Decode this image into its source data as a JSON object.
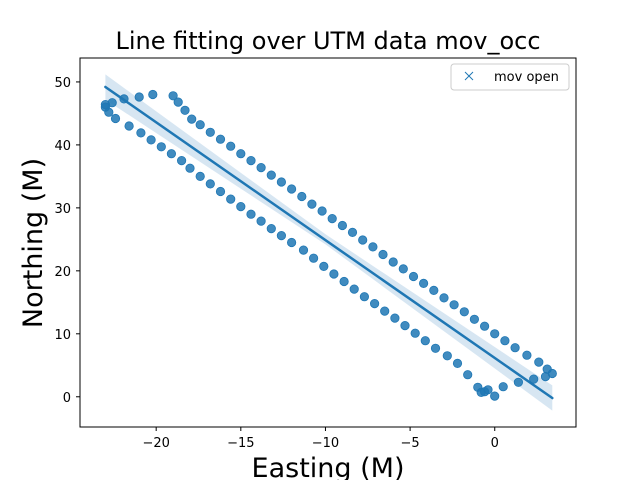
{
  "chart_data": {
    "type": "scatter",
    "title": "Line fitting over UTM data mov_occ",
    "xlabel": "Easting (M)",
    "ylabel": "Northing (M)",
    "xlim": [
      -24.5,
      4.8
    ],
    "ylim": [
      -4.8,
      53.8
    ],
    "xticks": [
      -20,
      -15,
      -10,
      -5,
      0
    ],
    "xtick_labels": [
      "−20",
      "−15",
      "−10",
      "−5",
      "0"
    ],
    "yticks": [
      0,
      10,
      20,
      30,
      40,
      50
    ],
    "ytick_labels": [
      "0",
      "10",
      "20",
      "30",
      "40",
      "50"
    ],
    "grid": false,
    "legend_position": "top-right",
    "colors": {
      "series": "#1f77b4",
      "ci_band": "#a6c8e3"
    },
    "series": [
      {
        "name": "mov open",
        "marker": "x",
        "x": [
          -23.0,
          -22.8,
          -22.4,
          -21.6,
          -20.9,
          -20.3,
          -19.7,
          -19.1,
          -18.5,
          -18.0,
          -17.4,
          -16.8,
          -16.2,
          -15.6,
          -15.0,
          -14.4,
          -13.8,
          -13.2,
          -12.6,
          -12.0,
          -11.3,
          -10.7,
          -10.1,
          -9.5,
          -8.9,
          -8.3,
          -7.7,
          -7.1,
          -6.5,
          -5.9,
          -5.3,
          -4.7,
          -4.1,
          -3.5,
          -2.8,
          -2.2,
          -1.6,
          -1.0,
          -0.8,
          -0.6,
          -0.4,
          0.0,
          0.5,
          1.4,
          2.3,
          3.0,
          3.4,
          3.1,
          2.6,
          1.9,
          1.2,
          0.6,
          0.0,
          -0.6,
          -1.2,
          -1.8,
          -2.4,
          -3.0,
          -3.6,
          -4.2,
          -4.8,
          -5.4,
          -6.0,
          -6.6,
          -7.2,
          -7.8,
          -8.4,
          -9.0,
          -9.6,
          -10.2,
          -10.8,
          -11.4,
          -12.0,
          -12.6,
          -13.2,
          -13.8,
          -14.4,
          -15.0,
          -15.6,
          -16.2,
          -16.8,
          -17.4,
          -17.9,
          -18.3,
          -18.7,
          -19.0,
          -20.2,
          -21.0,
          -21.9,
          -22.6,
          -23.0
        ],
        "y": [
          46.0,
          45.2,
          44.2,
          43.0,
          41.9,
          40.8,
          39.7,
          38.6,
          37.5,
          36.3,
          35.0,
          33.8,
          32.6,
          31.4,
          30.2,
          29.0,
          27.9,
          26.7,
          25.6,
          24.5,
          23.3,
          22.0,
          20.7,
          19.5,
          18.3,
          17.1,
          15.9,
          14.8,
          13.6,
          12.5,
          11.3,
          10.1,
          8.9,
          7.7,
          6.5,
          5.3,
          3.5,
          1.5,
          0.7,
          0.8,
          1.1,
          0.1,
          1.6,
          2.3,
          2.8,
          3.2,
          3.7,
          4.4,
          5.5,
          6.6,
          7.8,
          8.9,
          10.0,
          11.2,
          12.3,
          13.5,
          14.6,
          15.7,
          16.9,
          18.0,
          19.1,
          20.3,
          21.4,
          22.6,
          23.8,
          24.9,
          26.1,
          27.2,
          28.3,
          29.5,
          30.6,
          31.8,
          33.0,
          34.1,
          35.2,
          36.4,
          37.5,
          38.6,
          39.8,
          40.9,
          42.0,
          43.2,
          44.1,
          45.5,
          46.8,
          47.8,
          48.0,
          47.6,
          47.3,
          46.7,
          46.4
        ]
      }
    ],
    "fit_line": {
      "x": [
        -23.0,
        3.4
      ],
      "y": [
        49.2,
        -0.2
      ]
    },
    "ci_band": {
      "x": [
        -23.0,
        -10.0,
        3.4
      ],
      "upper": [
        51.2,
        25.8,
        1.8
      ],
      "lower": [
        47.2,
        24.2,
        -2.2
      ]
    }
  }
}
